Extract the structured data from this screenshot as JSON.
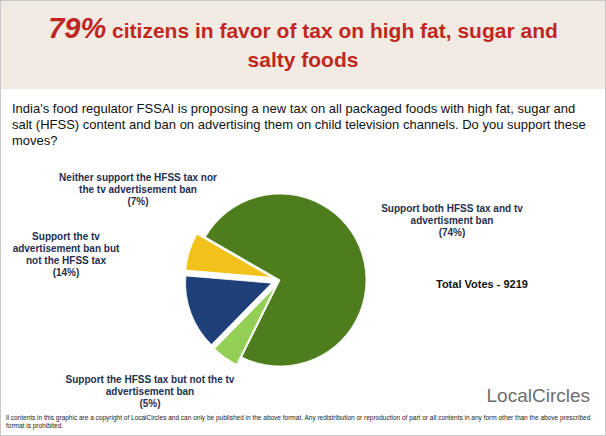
{
  "chart_data": {
    "type": "pie",
    "title": "79% citizens in favor of tax on high fat, sugar and salty foods",
    "subtitle": "India's food regulator FSSAI is proposing a new tax on all packaged foods with high fat, sugar and salt (HFSS) content and ban on advertising them on child television channels. Do you support these moves?",
    "categories": [
      "Support both HFSS tax and tv advertisment ban",
      "Support the HFSS tax but not the tv advertisement ban",
      "Support the tv advertisement ban but not the HFSS tax",
      "Neither support the HFSS tax nor the tv advertisement ban"
    ],
    "values": [
      74,
      5,
      14,
      7
    ],
    "value_labels": [
      "(74%)",
      "(5%)",
      "(14%)",
      "(7%)"
    ],
    "colors": [
      "#4e7d1e",
      "#93cf55",
      "#1f3f78",
      "#f2c21b"
    ],
    "data_labels": true,
    "total_votes_label": "Total Votes - 9219",
    "logo": "LocalCircles",
    "footer": "ll contents in this graphic are a copyright of LocalCircles and can only be published in the above format. Any redistribution or reproduction of part or all contents in any form other than the above prescribed format is prohibited."
  }
}
